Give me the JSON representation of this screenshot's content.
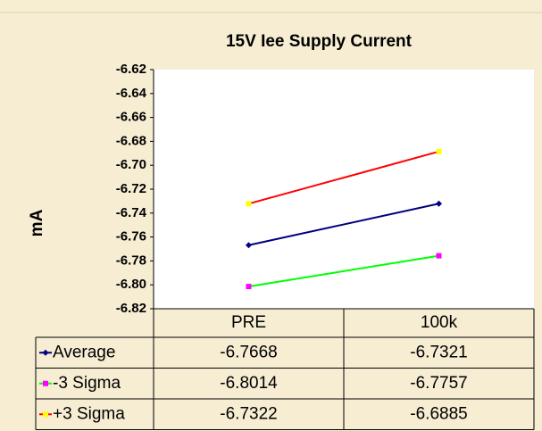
{
  "chart_data": {
    "type": "line",
    "title": "15V Iee Supply Current",
    "y_label": "mA",
    "categories": [
      "PRE",
      "100k"
    ],
    "series": [
      {
        "name": "Average",
        "color": "#000080",
        "marker_color": "#000080",
        "marker": "diamond",
        "values": [
          -6.7668,
          -6.7321
        ]
      },
      {
        "name": "-3 Sigma",
        "color": "#00ff00",
        "marker_color": "#ff00ff",
        "marker": "square",
        "values": [
          -6.8014,
          -6.7757
        ]
      },
      {
        "name": "+3 Sigma",
        "color": "#ff0000",
        "marker_color": "#ffff00",
        "marker": "square",
        "values": [
          -6.7322,
          -6.6885
        ]
      }
    ],
    "ylim": [
      -6.82,
      -6.62
    ],
    "yticks": [
      -6.62,
      -6.64,
      -6.66,
      -6.68,
      {
        "value": -6.7,
        "label": "-6.70"
      },
      -6.72,
      -6.74,
      -6.76,
      -6.78,
      {
        "value": -6.8,
        "label": "-6.80"
      },
      -6.82
    ],
    "data_table": true
  }
}
